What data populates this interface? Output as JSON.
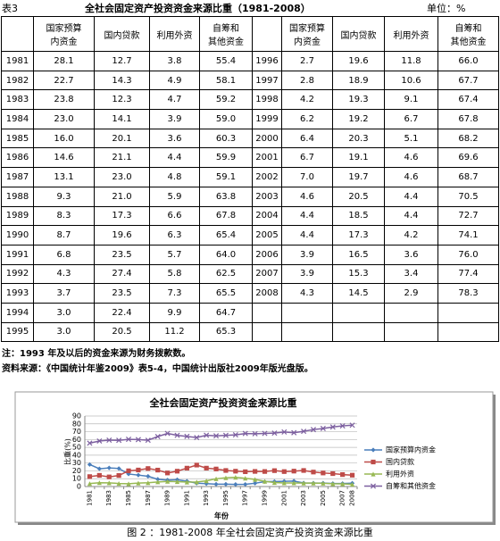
{
  "header": {
    "label": "表3",
    "title": "全社会固定资产投资资金来源比重（1981-2008）",
    "unit": "单位：%"
  },
  "table": {
    "columns": [
      [
        "国家预算",
        "内资金"
      ],
      [
        "国内贷款"
      ],
      [
        "利用外资"
      ],
      [
        "自筹和",
        "其他资金"
      ]
    ],
    "left_rows": [
      [
        "1981",
        "28.1",
        "12.7",
        "3.8",
        "55.4"
      ],
      [
        "1982",
        "22.7",
        "14.3",
        "4.9",
        "58.1"
      ],
      [
        "1983",
        "23.8",
        "12.3",
        "4.7",
        "59.2"
      ],
      [
        "1984",
        "23.0",
        "14.1",
        "3.9",
        "59.0"
      ],
      [
        "1985",
        "16.0",
        "20.1",
        "3.6",
        "60.3"
      ],
      [
        "1986",
        "14.6",
        "21.1",
        "4.4",
        "59.9"
      ],
      [
        "1987",
        "13.1",
        "23.0",
        "4.8",
        "59.1"
      ],
      [
        "1988",
        "9.3",
        "21.0",
        "5.9",
        "63.8"
      ],
      [
        "1989",
        "8.3",
        "17.3",
        "6.6",
        "67.8"
      ],
      [
        "1990",
        "8.7",
        "19.6",
        "6.3",
        "65.4"
      ],
      [
        "1991",
        "6.8",
        "23.5",
        "5.7",
        "64.0"
      ],
      [
        "1992",
        "4.3",
        "27.4",
        "5.8",
        "62.5"
      ],
      [
        "1993",
        "3.7",
        "23.5",
        "7.3",
        "65.5"
      ],
      [
        "1994",
        "3.0",
        "22.4",
        "9.9",
        "64.7"
      ],
      [
        "1995",
        "3.0",
        "20.5",
        "11.2",
        "65.3"
      ]
    ],
    "right_rows": [
      [
        "1996",
        "2.7",
        "19.6",
        "11.8",
        "66.0"
      ],
      [
        "1997",
        "2.8",
        "18.9",
        "10.6",
        "67.7"
      ],
      [
        "1998",
        "4.2",
        "19.3",
        "9.1",
        "67.4"
      ],
      [
        "1999",
        "6.2",
        "19.2",
        "6.7",
        "67.8"
      ],
      [
        "2000",
        "6.4",
        "20.3",
        "5.1",
        "68.2"
      ],
      [
        "2001",
        "6.7",
        "19.1",
        "4.6",
        "69.6"
      ],
      [
        "2002",
        "7.0",
        "19.7",
        "4.6",
        "68.7"
      ],
      [
        "2003",
        "4.6",
        "20.5",
        "4.4",
        "70.5"
      ],
      [
        "2004",
        "4.4",
        "18.5",
        "4.4",
        "72.7"
      ],
      [
        "2005",
        "4.4",
        "17.3",
        "4.2",
        "74.1"
      ],
      [
        "2006",
        "3.9",
        "16.5",
        "3.6",
        "76.0"
      ],
      [
        "2007",
        "3.9",
        "15.3",
        "3.4",
        "77.4"
      ],
      [
        "2008",
        "4.3",
        "14.5",
        "2.9",
        "78.3"
      ]
    ]
  },
  "notes": [
    "注：1993 年及以后的资金来源为财务拨款数。",
    "资料来源：《中国统计年鉴2009》表5-4，中国统计出版社2009年版光盘版。"
  ],
  "chart_data": {
    "type": "line",
    "title": "全社会固定资产投资资金来源比重",
    "y_label": "比重(%)",
    "x_label": "年份",
    "categories": [
      "1981",
      null,
      "1983",
      null,
      "1985",
      null,
      "1987",
      null,
      "1989",
      null,
      "1991",
      null,
      "1993",
      null,
      "1995",
      null,
      "1997",
      null,
      "1999",
      null,
      "2001",
      null,
      "2003",
      null,
      "2005",
      null,
      "2007",
      "2008"
    ],
    "series": [
      {
        "name": "国家预算内资金",
        "color": "#4a7ebb",
        "marker": "diamond",
        "values": [
          28.1,
          22.7,
          23.8,
          23.0,
          16.0,
          14.6,
          13.1,
          9.3,
          8.3,
          8.7,
          6.8,
          4.3,
          3.7,
          3.0,
          3.0,
          2.7,
          2.8,
          4.2,
          6.2,
          6.4,
          6.7,
          7.0,
          4.6,
          4.4,
          4.4,
          3.9,
          3.9,
          4.3
        ]
      },
      {
        "name": "国内贷款",
        "color": "#be4b48",
        "marker": "square",
        "values": [
          12.7,
          14.3,
          12.3,
          14.1,
          20.1,
          21.1,
          23.0,
          21.0,
          17.3,
          19.6,
          23.5,
          27.4,
          23.5,
          22.4,
          20.5,
          19.6,
          18.9,
          19.3,
          19.2,
          20.3,
          19.1,
          19.7,
          20.5,
          18.5,
          17.3,
          16.5,
          15.3,
          14.5
        ]
      },
      {
        "name": "利用外资",
        "color": "#98b954",
        "marker": "triangle",
        "values": [
          3.8,
          4.9,
          4.7,
          3.9,
          3.6,
          4.4,
          4.8,
          5.9,
          6.6,
          6.3,
          5.7,
          5.8,
          7.3,
          9.9,
          11.2,
          11.8,
          10.6,
          9.1,
          6.7,
          5.1,
          4.6,
          4.6,
          4.4,
          4.4,
          4.2,
          3.6,
          3.4,
          2.9
        ]
      },
      {
        "name": "自筹和其他资金",
        "color": "#7d60a0",
        "marker": "x",
        "values": [
          55.4,
          58.1,
          59.2,
          59.0,
          60.3,
          59.9,
          59.1,
          63.8,
          67.8,
          65.4,
          64.0,
          62.5,
          65.5,
          64.7,
          65.3,
          66.0,
          67.7,
          67.4,
          67.8,
          68.2,
          69.6,
          68.7,
          70.5,
          72.7,
          74.1,
          76.0,
          77.4,
          78.3
        ]
      }
    ],
    "ylim": [
      0,
      90
    ],
    "yticks": [
      0,
      10,
      20,
      30,
      40,
      50,
      60,
      70,
      80,
      90
    ],
    "grid": true,
    "legend": "right"
  },
  "caption": "图 2 ：1981-2008 年全社会固定资产投资资金来源比重"
}
